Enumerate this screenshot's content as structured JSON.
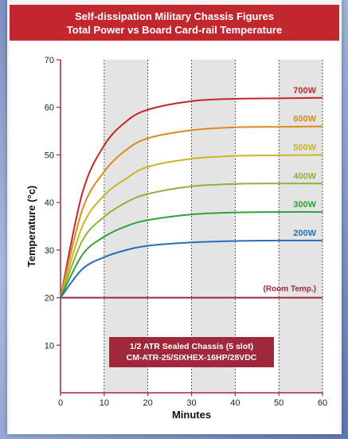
{
  "chart_data": {
    "type": "line",
    "title": "Self-dissipation Military Chassis Figures",
    "subtitle": "Total Power vs Board Card-rail Temperature",
    "xlabel": "Minutes",
    "ylabel": "Temperature (°c)",
    "xlim": [
      0,
      60
    ],
    "ylim": [
      0,
      70
    ],
    "xticks": [
      0,
      10,
      20,
      30,
      40,
      50,
      60
    ],
    "yticks": [
      10,
      20,
      30,
      40,
      50,
      60,
      70
    ],
    "grid": "vertical dashed lines every 10 minutes, alternating shaded bands",
    "room_temp": {
      "label": "(Room Temp.)",
      "value": 20,
      "color": "#a0283a"
    },
    "annotation": {
      "line1": "1/2 ATR Sealed Chassis (5 slot)",
      "line2": "CM-ATR-25/SIXHEX-16HP/28VDC"
    },
    "series": [
      {
        "name": "700W",
        "start": 20,
        "final": 62,
        "color": "#c1272d",
        "points": [
          [
            0,
            20
          ],
          [
            5,
            42
          ],
          [
            10,
            52
          ],
          [
            15,
            57
          ],
          [
            20,
            59.5
          ],
          [
            30,
            61.3
          ],
          [
            40,
            61.8
          ],
          [
            50,
            61.9
          ],
          [
            60,
            62
          ]
        ]
      },
      {
        "name": "600W",
        "start": 20,
        "final": 56,
        "color": "#d98b1d",
        "points": [
          [
            0,
            20
          ],
          [
            5,
            38.5
          ],
          [
            10,
            46.5
          ],
          [
            15,
            51
          ],
          [
            20,
            53.5
          ],
          [
            30,
            55.2
          ],
          [
            40,
            55.8
          ],
          [
            50,
            55.9
          ],
          [
            60,
            56
          ]
        ]
      },
      {
        "name": "500W",
        "start": 20,
        "final": 50,
        "color": "#c9b42a",
        "points": [
          [
            0,
            20
          ],
          [
            5,
            35
          ],
          [
            10,
            41.5
          ],
          [
            15,
            45
          ],
          [
            20,
            47.5
          ],
          [
            30,
            49.2
          ],
          [
            40,
            49.8
          ],
          [
            50,
            49.9
          ],
          [
            60,
            50
          ]
        ]
      },
      {
        "name": "400W",
        "start": 20,
        "final": 44,
        "color": "#8cb33a",
        "points": [
          [
            0,
            20
          ],
          [
            5,
            32
          ],
          [
            10,
            37
          ],
          [
            15,
            40
          ],
          [
            20,
            41.8
          ],
          [
            30,
            43.4
          ],
          [
            40,
            43.9
          ],
          [
            50,
            44
          ],
          [
            60,
            44
          ]
        ]
      },
      {
        "name": "300W",
        "start": 20,
        "final": 38,
        "color": "#33a13a",
        "points": [
          [
            0,
            20
          ],
          [
            5,
            29
          ],
          [
            10,
            32.8
          ],
          [
            15,
            35
          ],
          [
            20,
            36.3
          ],
          [
            30,
            37.5
          ],
          [
            40,
            37.9
          ],
          [
            50,
            38
          ],
          [
            60,
            38
          ]
        ]
      },
      {
        "name": "200W",
        "start": 20,
        "final": 32,
        "color": "#2a6fb5",
        "points": [
          [
            0,
            20
          ],
          [
            5,
            26
          ],
          [
            10,
            28.5
          ],
          [
            15,
            30
          ],
          [
            20,
            30.9
          ],
          [
            30,
            31.6
          ],
          [
            40,
            31.9
          ],
          [
            50,
            32
          ],
          [
            60,
            32
          ]
        ]
      }
    ]
  }
}
